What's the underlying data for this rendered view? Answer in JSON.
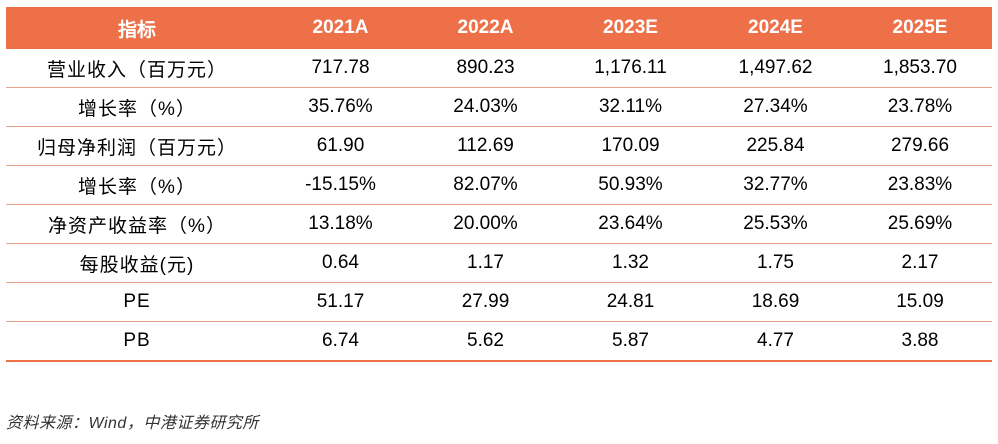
{
  "table": {
    "headers": [
      "指标",
      "2021A",
      "2022A",
      "2023E",
      "2024E",
      "2025E"
    ],
    "rows": [
      {
        "label": "营业收入（百万元）",
        "values": [
          "717.78",
          "890.23",
          "1,176.11",
          "1,497.62",
          "1,853.70"
        ]
      },
      {
        "label": "增长率（%）",
        "values": [
          "35.76%",
          "24.03%",
          "32.11%",
          "27.34%",
          "23.78%"
        ]
      },
      {
        "label": "归母净利润（百万元）",
        "values": [
          "61.90",
          "112.69",
          "170.09",
          "225.84",
          "279.66"
        ]
      },
      {
        "label": "增长率（%）",
        "values": [
          "-15.15%",
          "82.07%",
          "50.93%",
          "32.77%",
          "23.83%"
        ]
      },
      {
        "label": "净资产收益率（%）",
        "values": [
          "13.18%",
          "20.00%",
          "23.64%",
          "25.53%",
          "25.69%"
        ]
      },
      {
        "label": "每股收益(元)",
        "values": [
          "0.64",
          "1.17",
          "1.32",
          "1.75",
          "2.17"
        ]
      },
      {
        "label": "PE",
        "values": [
          "51.17",
          "27.99",
          "24.81",
          "18.69",
          "15.09"
        ]
      },
      {
        "label": "PB",
        "values": [
          "6.74",
          "5.62",
          "5.87",
          "4.77",
          "3.88"
        ]
      }
    ]
  },
  "source": "资料来源：Wind，中港证券研究所",
  "colors": {
    "header_bg": "#ee7048",
    "header_text": "#ffffff",
    "row_divider": "#e8a38c"
  }
}
